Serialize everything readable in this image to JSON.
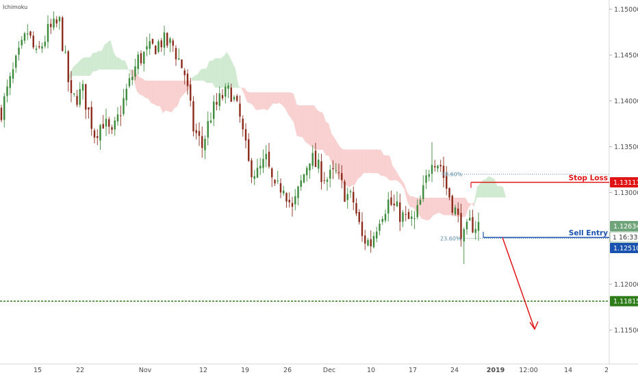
{
  "header": {
    "indicator_name": "Ichimoku"
  },
  "colors": {
    "bull": "#3a8a3a",
    "bear": "#8b2a1a",
    "cloud_bull": "#c8e6c9",
    "cloud_bear": "#f8c8c8",
    "stop_loss": "#e01414",
    "sell_entry": "#1a52b0",
    "target": "#2e7d1a",
    "fib": "#5a8aa8",
    "current_price": "#6fa37a",
    "axis_text": "#4a4a4a"
  },
  "chart_data": {
    "type": "candlestick",
    "title": "",
    "indicator": "Ichimoku",
    "ylim": [
      1.1113,
      1.151
    ],
    "y_ticks": [
      "1.11500",
      "1.12000",
      "1.12500",
      "1.13000",
      "1.13500",
      "1.14000",
      "1.14500",
      "1.15000"
    ],
    "x_ticks": [
      "15",
      "22",
      "Nov",
      "12",
      "19",
      "26",
      "Dec",
      "10",
      "17",
      "24",
      "2019",
      "12:00",
      "14",
      "2"
    ],
    "price_path": [
      [
        0,
        1.139
      ],
      [
        5,
        1.144
      ],
      [
        9,
        1.1475
      ],
      [
        12,
        1.1448
      ],
      [
        16,
        1.1475
      ],
      [
        20,
        1.1485
      ],
      [
        24,
        1.14
      ],
      [
        28,
        1.141
      ],
      [
        32,
        1.1365
      ],
      [
        35,
        1.1378
      ],
      [
        38,
        1.136
      ],
      [
        43,
        1.141
      ],
      [
        47,
        1.1445
      ],
      [
        51,
        1.1455
      ],
      [
        55,
        1.1465
      ],
      [
        59,
        1.146
      ],
      [
        63,
        1.143
      ],
      [
        66,
        1.137
      ],
      [
        69,
        1.135
      ],
      [
        72,
        1.1385
      ],
      [
        76,
        1.1405
      ],
      [
        79,
        1.141
      ],
      [
        82,
        1.138
      ],
      [
        85,
        1.133
      ],
      [
        88,
        1.132
      ],
      [
        91,
        1.1335
      ],
      [
        94,
        1.13
      ],
      [
        97,
        1.131
      ],
      [
        100,
        1.128
      ],
      [
        103,
        1.131
      ],
      [
        106,
        1.134
      ],
      [
        109,
        1.1325
      ],
      [
        112,
        1.1315
      ],
      [
        115,
        1.132
      ],
      [
        118,
        1.13
      ],
      [
        121,
        1.129
      ],
      [
        124,
        1.125
      ],
      [
        127,
        1.1245
      ],
      [
        130,
        1.1275
      ],
      [
        133,
        1.129
      ],
      [
        136,
        1.128
      ],
      [
        139,
        1.127
      ],
      [
        142,
        1.1268
      ],
      [
        145,
        1.13
      ],
      [
        148,
        1.134
      ],
      [
        151,
        1.133
      ],
      [
        153,
        1.1305
      ],
      [
        156,
        1.128
      ],
      [
        159,
        1.125
      ],
      [
        161,
        1.1265
      ]
    ],
    "annotations": {
      "stop_loss": {
        "label": "Stop Loss",
        "value": 1.13111,
        "price_label": "1.13111"
      },
      "sell_entry": {
        "label": "Sell Entry",
        "value": 1.1251,
        "price_label": "1.12510"
      },
      "target": {
        "value": 1.11815,
        "price_label": "1.11815"
      },
      "current_price": {
        "value": 1.12634,
        "price_label": "1.12634",
        "countdown": "16:33"
      },
      "fib_upper": {
        "label": "78.60%",
        "value": 1.132
      },
      "fib_lower": {
        "label": "23.60%",
        "value": 1.125
      }
    },
    "grid": false,
    "legend": "none"
  }
}
